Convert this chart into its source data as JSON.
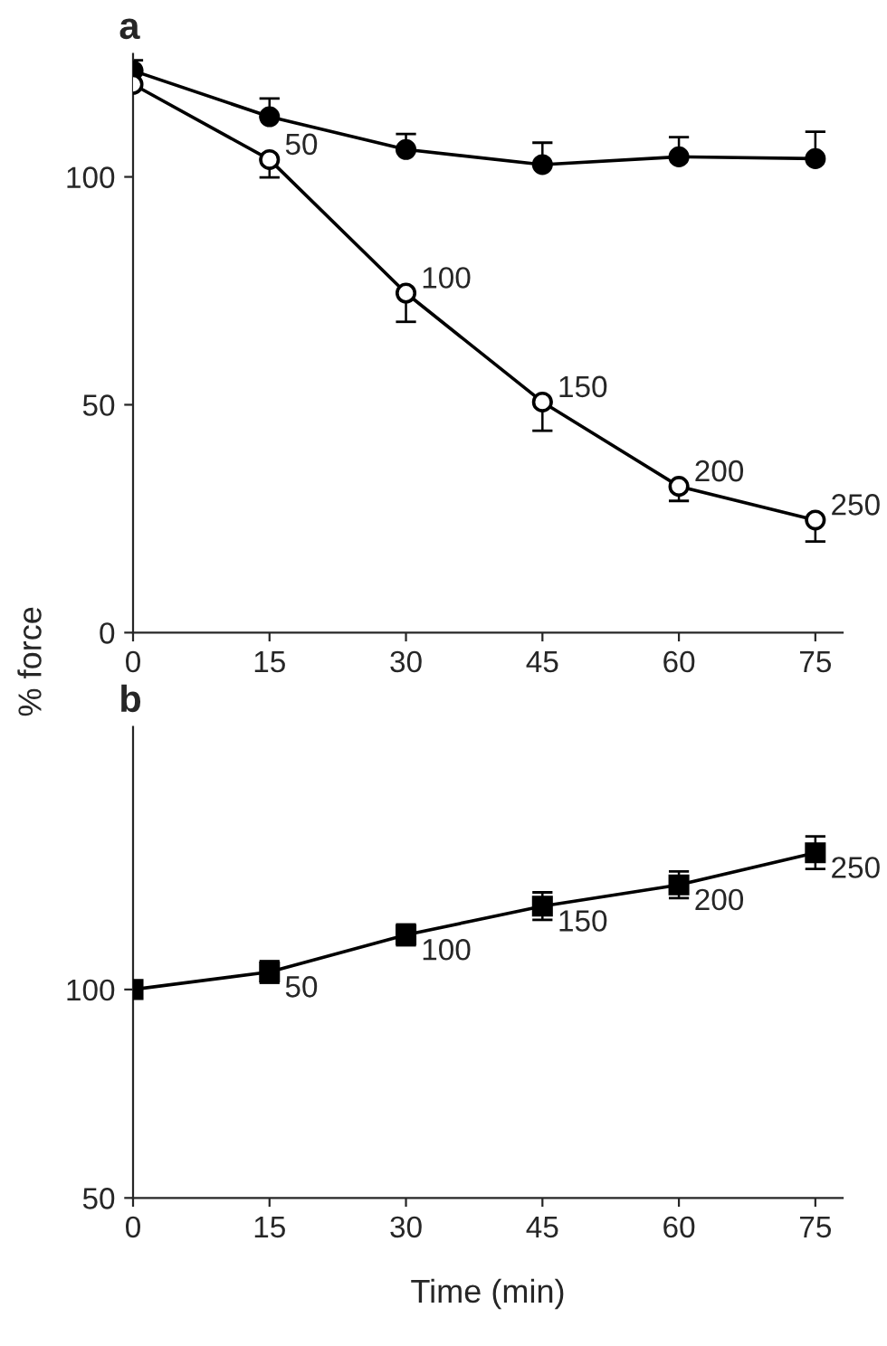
{
  "chart_data": [
    {
      "type": "line",
      "title": "a",
      "ylabel": "% force",
      "x": [
        0,
        15,
        30,
        45,
        60,
        75
      ],
      "xlim": [
        0,
        78
      ],
      "ylim": [
        0,
        127
      ],
      "xticks": [
        0,
        15,
        30,
        45,
        60,
        75
      ],
      "yticks": [
        0,
        50,
        100
      ],
      "grid": false,
      "legend": false,
      "line_style": "solid",
      "series": [
        {
          "color": "#000000",
          "marker": "circle",
          "values": [
            123.3,
            113.2,
            106,
            102.7,
            104.4,
            104
          ],
          "errors": [
            [
              123.3,
              125.6
            ],
            [
              113.2,
              117.2
            ],
            [
              106,
              109.4
            ],
            [
              102.7,
              107.5
            ],
            [
              104.4,
              108.7
            ],
            [
              104,
              109.9
            ]
          ]
        },
        {
          "color": "#ffffff",
          "marker": "circle",
          "values": [
            120.3,
            103.8,
            74.5,
            50.6,
            32.1,
            24.7
          ],
          "errors": [
            null,
            [
              99.9,
              103.8
            ],
            [
              68.2,
              74.5
            ],
            [
              44.3,
              50.6
            ],
            [
              28.9,
              32.1
            ],
            [
              20,
              24.7
            ]
          ]
        }
      ],
      "annotations": [
        {
          "text": "50",
          "x": 15,
          "y": 103.8
        },
        {
          "text": "100",
          "x": 30,
          "y": 74.5
        },
        {
          "text": "150",
          "x": 45,
          "y": 50.6
        },
        {
          "text": "200",
          "x": 60,
          "y": 32.1
        },
        {
          "text": "250",
          "x": 75,
          "y": 24.7
        }
      ]
    },
    {
      "type": "line",
      "title": "b",
      "xlabel": "Time (min)",
      "x": [
        0,
        15,
        30,
        45,
        60,
        75
      ],
      "xlim": [
        0,
        78
      ],
      "ylim": [
        50,
        163
      ],
      "xticks": [
        0,
        15,
        30,
        45,
        60,
        75
      ],
      "yticks": [
        50,
        100
      ],
      "grid": false,
      "legend": false,
      "line_style": "solid",
      "series": [
        {
          "color": "#000000",
          "marker": "square",
          "values": [
            100,
            104.2,
            113.1,
            120,
            125.1,
            132.8
          ],
          "errors": [
            null,
            2.6,
            2.5,
            3.3,
            3.2,
            3.9
          ]
        }
      ],
      "annotations": [
        {
          "text": "50",
          "x": 15,
          "y": 104.2
        },
        {
          "text": "100",
          "x": 30,
          "y": 113.1
        },
        {
          "text": "150",
          "x": 45,
          "y": 120
        },
        {
          "text": "200",
          "x": 60,
          "y": 125.1
        },
        {
          "text": "250",
          "x": 75,
          "y": 132.8
        }
      ]
    }
  ]
}
